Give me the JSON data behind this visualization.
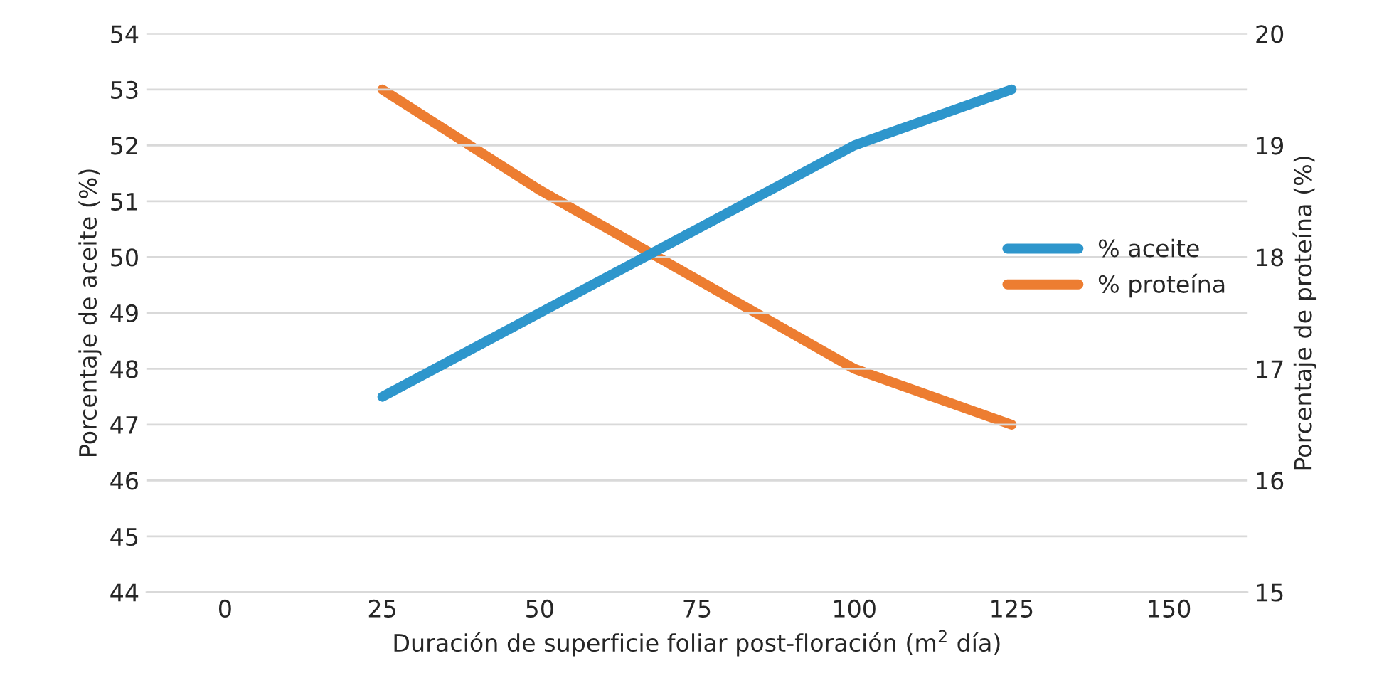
{
  "chart_data": {
    "type": "line",
    "xlabel": "Duración de superficie foliar post-floración (m$^{2}$ día)",
    "ylabel": "Porcentaje de aceite (%)",
    "y2label": "Porcentaje de proteína (%)",
    "x": [
      25,
      50,
      75,
      100,
      125
    ],
    "series": [
      {
        "name": "% aceite",
        "color": "#2e96cc",
        "values": [
          47.5,
          49,
          50.5,
          52,
          53
        ]
      },
      {
        "name": "% proteína",
        "color": "#ed7d31",
        "values": [
          19.5,
          18.6,
          17.8,
          17.0,
          16.5
        ],
        "axis": "y2"
      }
    ],
    "xlim": [
      -12.5,
      162.5
    ],
    "xticks": [
      0,
      25,
      50,
      75,
      100,
      125,
      150
    ],
    "ylim": [
      44,
      54
    ],
    "yticks": [
      44,
      45,
      46,
      47,
      48,
      49,
      50,
      51,
      52,
      53,
      54
    ],
    "y2lim": [
      15,
      20
    ],
    "y2ticks": [
      15,
      16,
      17,
      18,
      19,
      20
    ],
    "grid": "y",
    "legend": "right",
    "marker": "none",
    "line_style": "solid"
  }
}
